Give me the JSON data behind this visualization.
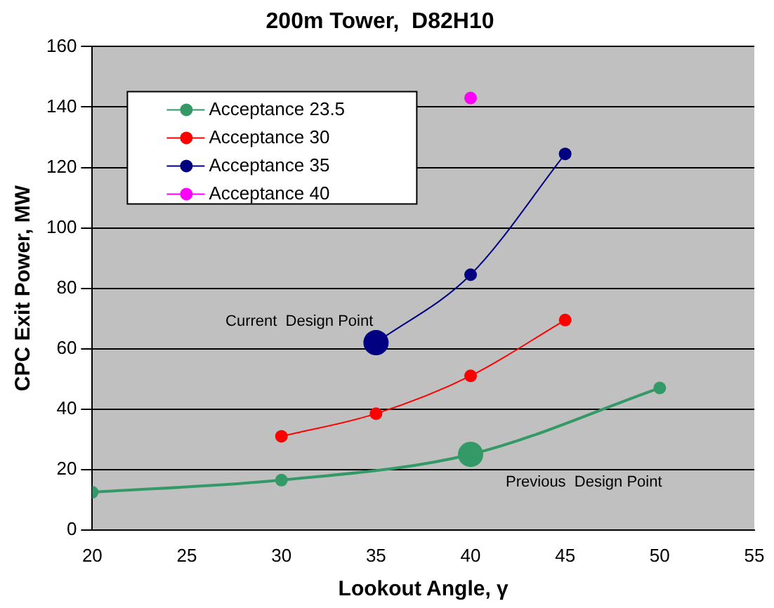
{
  "chart_data": {
    "type": "line",
    "title": "200m Tower,  D82H10",
    "xlabel": "Lookout Angle, γ",
    "ylabel": "CPC Exit Power, MW",
    "xlim": [
      20,
      55
    ],
    "xticks": [
      20,
      25,
      30,
      35,
      40,
      45,
      50,
      55
    ],
    "ylim": [
      0,
      160
    ],
    "yticks": [
      0,
      20,
      40,
      60,
      80,
      100,
      120,
      140,
      160
    ],
    "grid": "y",
    "legend": "top left",
    "marker": "circle",
    "line_style": "solid",
    "series": [
      {
        "name": "Acceptance 23.5",
        "color": "#339966",
        "x": [
          20,
          30,
          40,
          50
        ],
        "values": [
          12.5,
          16.5,
          25,
          47
        ]
      },
      {
        "name": "Acceptance 30",
        "color": "#ff0000",
        "x": [
          30,
          35,
          40,
          45
        ],
        "values": [
          31,
          38.5,
          51,
          69.5
        ]
      },
      {
        "name": "Acceptance 35",
        "color": "#000080",
        "x": [
          35,
          40,
          45
        ],
        "values": [
          62,
          84.5,
          124.5
        ]
      },
      {
        "name": "Acceptance 40",
        "color": "#ff00ff",
        "x": [
          40
        ],
        "values": [
          143
        ]
      }
    ],
    "annotations": [
      {
        "text": "Current  Design Point",
        "x": 35,
        "y": 62
      },
      {
        "text": "Previous  Design Point",
        "x": 40,
        "y": 25
      }
    ]
  }
}
